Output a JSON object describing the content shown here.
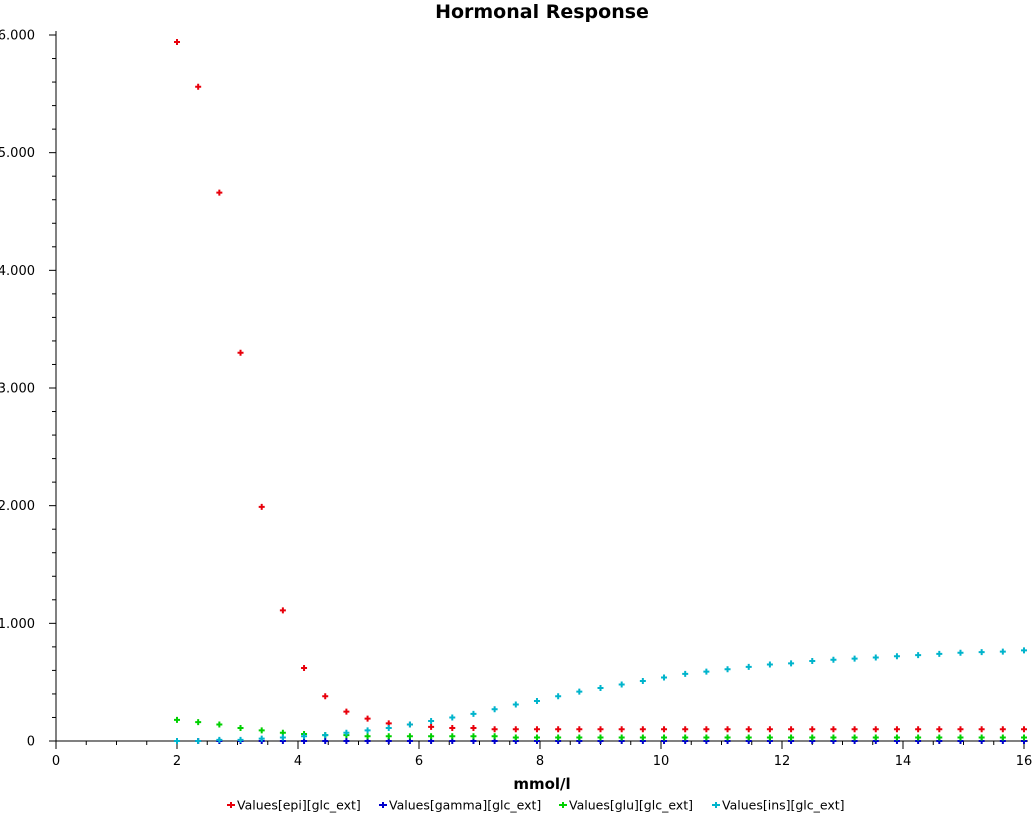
{
  "chart_data": {
    "type": "scatter",
    "title": "Hormonal Response",
    "xlabel": "mmol/l",
    "ylabel": "",
    "xlim": [
      0,
      16
    ],
    "ylim": [
      0,
      6
    ],
    "x_ticks": [
      "0",
      "2",
      "4",
      "6",
      "8",
      "10",
      "12",
      "14",
      "16"
    ],
    "y_ticks": [
      "0",
      "1.000",
      "2.000",
      "3.000",
      "4.000",
      "5.000",
      "6.000"
    ],
    "grid": false,
    "legend_position": "bottom",
    "marker": "plus",
    "x": [
      2.0,
      2.35,
      2.7,
      3.05,
      3.4,
      3.75,
      4.1,
      4.45,
      4.8,
      5.15,
      5.5,
      5.85,
      6.2,
      6.55,
      6.9,
      7.25,
      7.6,
      7.95,
      8.3,
      8.65,
      9.0,
      9.35,
      9.7,
      10.05,
      10.4,
      10.75,
      11.1,
      11.45,
      11.8,
      12.15,
      12.5,
      12.85,
      13.2,
      13.55,
      13.9,
      14.25,
      14.6,
      14.95,
      15.3,
      15.65,
      16.0
    ],
    "series": [
      {
        "name": "Values[epi][glc_ext]",
        "color": "#e8000b",
        "values": [
          5.94,
          5.56,
          4.66,
          3.3,
          1.99,
          1.11,
          0.62,
          0.38,
          0.25,
          0.19,
          0.15,
          0.14,
          0.12,
          0.11,
          0.11,
          0.1,
          0.1,
          0.1,
          0.1,
          0.1,
          0.1,
          0.1,
          0.1,
          0.1,
          0.1,
          0.1,
          0.1,
          0.1,
          0.1,
          0.1,
          0.1,
          0.1,
          0.1,
          0.1,
          0.1,
          0.1,
          0.1,
          0.1,
          0.1,
          0.1,
          0.1
        ]
      },
      {
        "name": "Values[gamma][glc_ext]",
        "color": "#0000cc",
        "values": [
          0.0,
          0.0,
          0.0,
          0.0,
          0.0,
          0.0,
          0.0,
          0.0,
          0.0,
          0.0,
          0.0,
          0.0,
          0.0,
          0.0,
          0.0,
          0.0,
          0.0,
          0.0,
          0.0,
          0.0,
          0.0,
          0.0,
          0.0,
          0.0,
          0.0,
          0.0,
          0.0,
          0.0,
          0.0,
          0.0,
          0.0,
          0.0,
          0.0,
          0.0,
          0.0,
          0.0,
          0.0,
          0.0,
          0.0,
          0.0,
          0.0
        ]
      },
      {
        "name": "Values[glu][glc_ext]",
        "color": "#00d000",
        "values": [
          0.18,
          0.16,
          0.14,
          0.11,
          0.09,
          0.07,
          0.06,
          0.05,
          0.05,
          0.04,
          0.04,
          0.04,
          0.04,
          0.04,
          0.04,
          0.04,
          0.03,
          0.03,
          0.03,
          0.03,
          0.03,
          0.03,
          0.03,
          0.03,
          0.03,
          0.03,
          0.03,
          0.03,
          0.03,
          0.03,
          0.03,
          0.03,
          0.03,
          0.03,
          0.03,
          0.03,
          0.03,
          0.03,
          0.03,
          0.03,
          0.03
        ]
      },
      {
        "name": "Values[ins][glc_ext]",
        "color": "#00b4cc",
        "values": [
          0.0,
          0.0,
          0.01,
          0.01,
          0.02,
          0.03,
          0.04,
          0.05,
          0.07,
          0.09,
          0.11,
          0.14,
          0.17,
          0.2,
          0.23,
          0.27,
          0.31,
          0.34,
          0.38,
          0.42,
          0.45,
          0.48,
          0.51,
          0.54,
          0.57,
          0.59,
          0.61,
          0.63,
          0.65,
          0.66,
          0.68,
          0.69,
          0.7,
          0.71,
          0.72,
          0.73,
          0.74,
          0.75,
          0.755,
          0.76,
          0.77
        ]
      }
    ]
  }
}
